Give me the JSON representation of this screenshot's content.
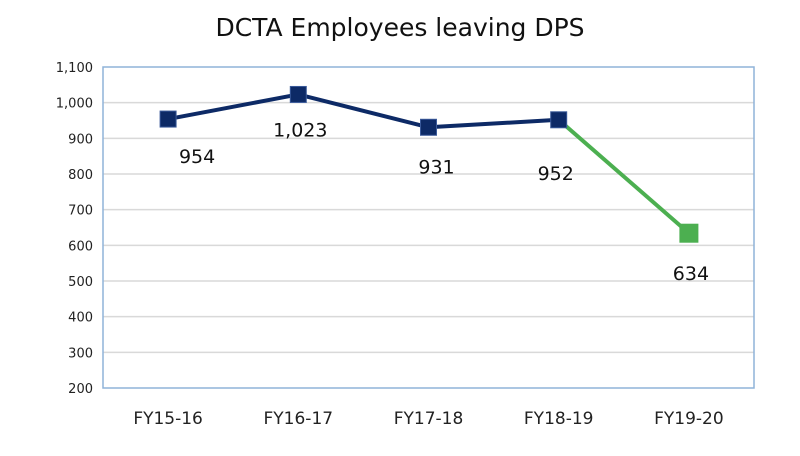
{
  "chart_data": {
    "type": "line",
    "title": "DCTA Employees leaving DPS",
    "xlabel": "",
    "ylabel": "",
    "categories": [
      "FY15-16",
      "FY16-17",
      "FY17-18",
      "FY18-19",
      "FY19-20"
    ],
    "values": [
      954,
      1023,
      931,
      952,
      634
    ],
    "data_labels": [
      "954",
      "1,023",
      "931",
      "952",
      "634"
    ],
    "ylim": [
      200,
      1100
    ],
    "yticks": [
      200,
      300,
      400,
      500,
      600,
      700,
      800,
      900,
      1000,
      1100
    ],
    "ytick_labels": [
      "200",
      "300",
      "400",
      "500",
      "600",
      "700",
      "800",
      "900",
      "1,000",
      "1,100"
    ],
    "grid": true,
    "legend": "none",
    "colors": {
      "main": "#0d2a66",
      "highlight": "#4caf50",
      "grid": "#d9d9d9",
      "border": "#8fb3d9"
    },
    "highlight_index": 4
  }
}
